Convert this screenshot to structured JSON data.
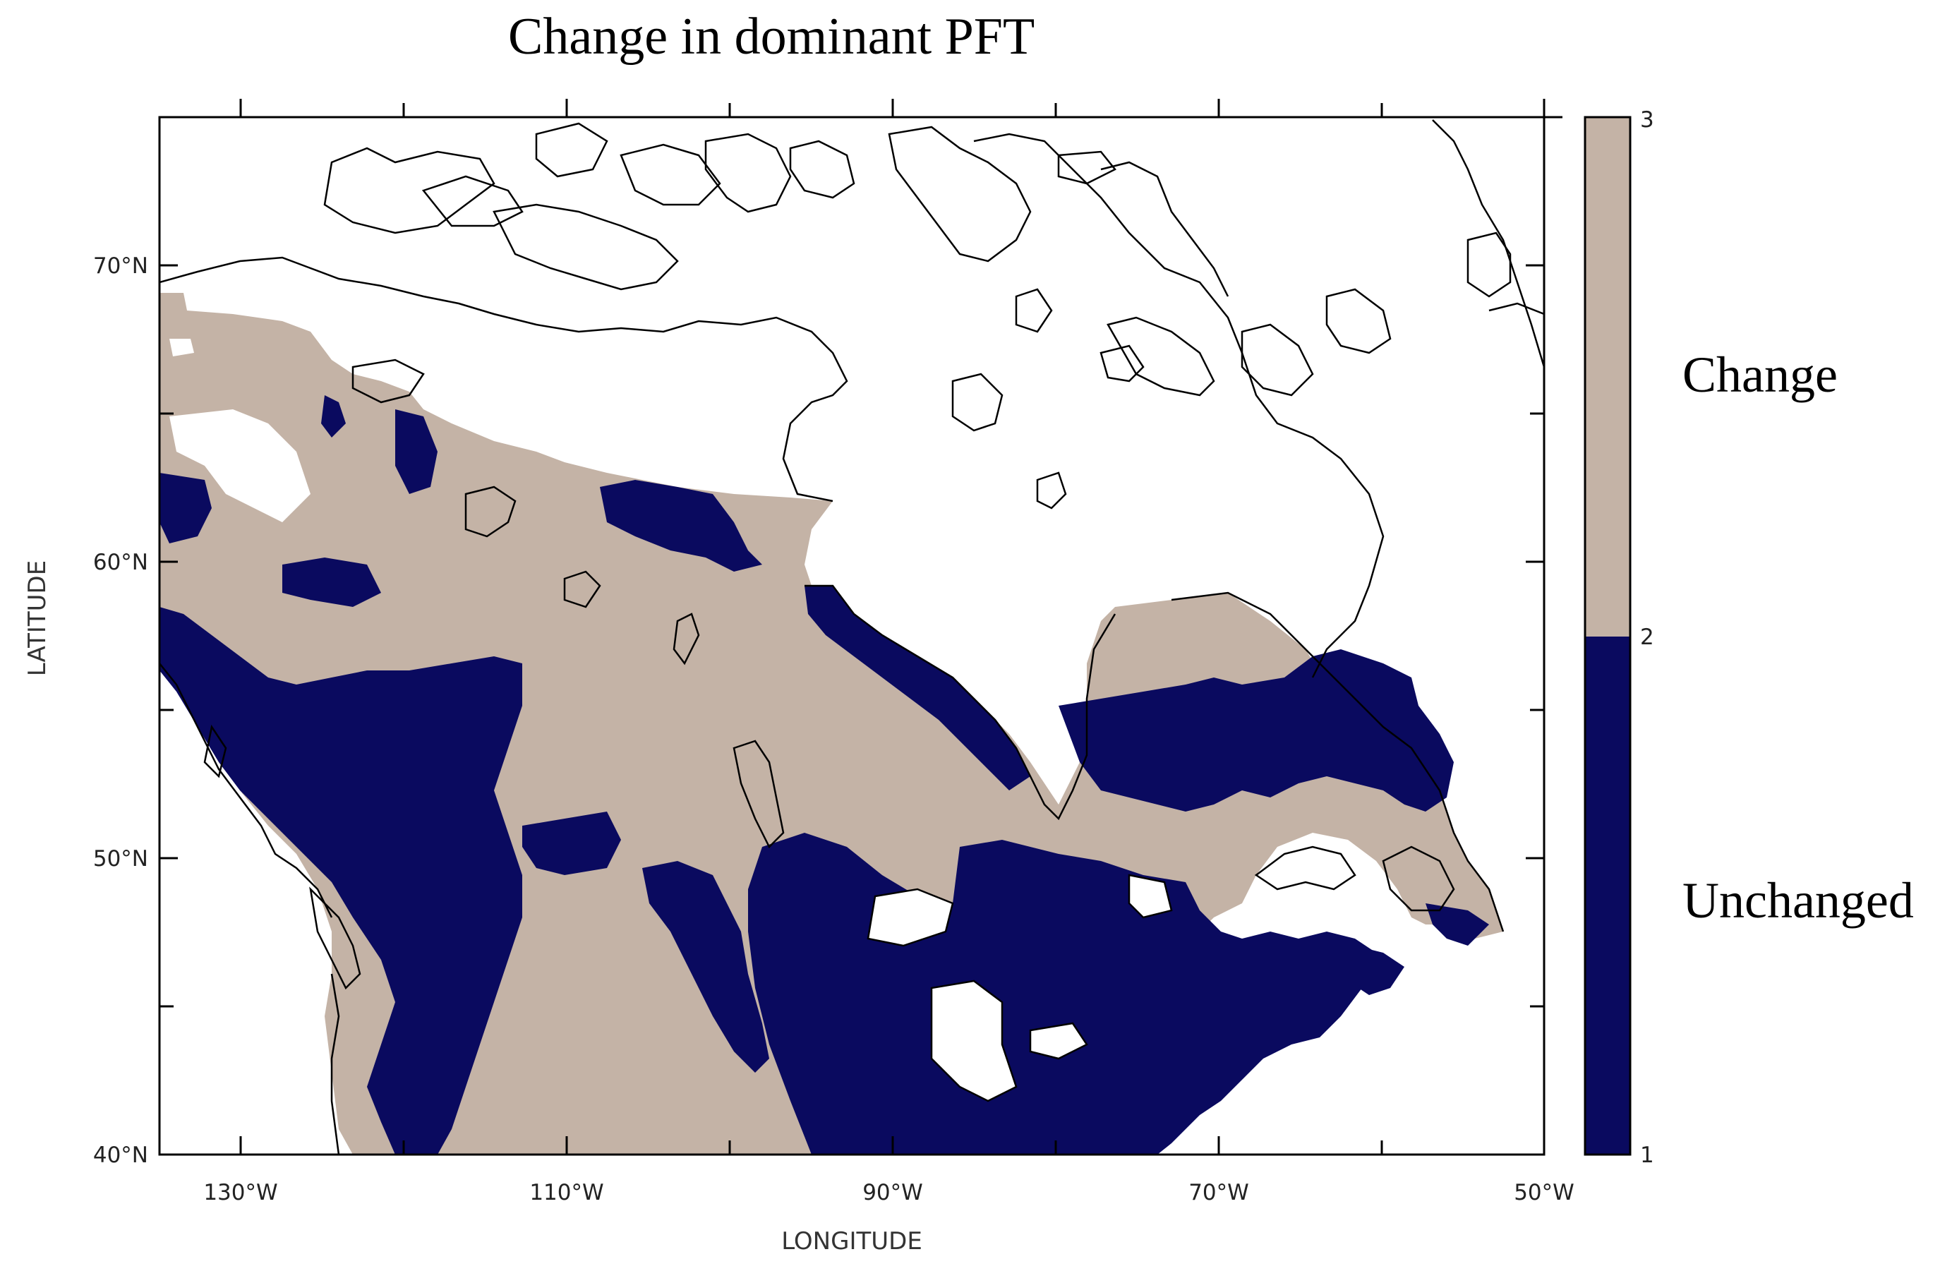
{
  "title": "Change in dominant PFT",
  "x_axis": {
    "label": "LONGITUDE",
    "ticks": [
      "130°W",
      "110°W",
      "90°W",
      "70°W",
      "50°W"
    ]
  },
  "y_axis": {
    "label": "LATITUDE",
    "ticks": [
      "70°N",
      "60°N",
      "50°N",
      "40°N"
    ]
  },
  "colorbar": {
    "ticks": [
      "3",
      "2",
      "1"
    ],
    "classes": [
      {
        "label": "Change",
        "color": "#c4b3a6"
      },
      {
        "label": "Unchanged",
        "color": "#0a0a5f"
      }
    ]
  },
  "map": {
    "extent": {
      "lon_min": -135,
      "lon_max": -50,
      "lat_min": 40,
      "lat_max": 75
    },
    "land_color_change": "#c4b3a6",
    "land_color_unchanged": "#0a0a5f",
    "coastline_color": "#000000"
  }
}
